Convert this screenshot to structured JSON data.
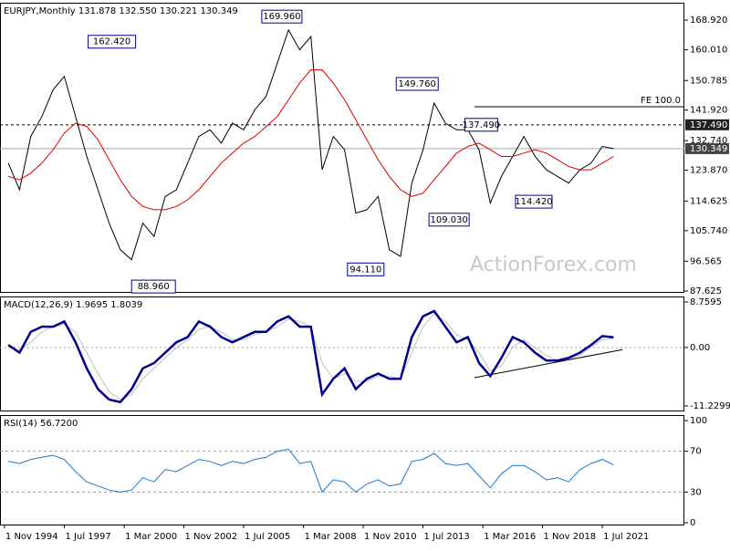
{
  "chart_data": [
    {
      "type": "line",
      "title": "EURJPY,Monthly  131.878 132.550 130.221 130.349",
      "watermark": "ActionForex.com",
      "x": [
        1995,
        1995.5,
        1996,
        1996.5,
        1997,
        1997.5,
        1998,
        1998.5,
        1999,
        1999.5,
        2000,
        2000.5,
        2001,
        2001.5,
        2002,
        2002.5,
        2003,
        2003.5,
        2004,
        2004.5,
        2005,
        2005.5,
        2006,
        2006.5,
        2007,
        2007.5,
        2008,
        2008.5,
        2009,
        2009.5,
        2010,
        2010.5,
        2011,
        2011.5,
        2012,
        2012.5,
        2013,
        2013.5,
        2014,
        2014.5,
        2015,
        2015.5,
        2016,
        2016.5,
        2017,
        2017.5,
        2018,
        2018.5,
        2019,
        2019.5,
        2020,
        2020.5,
        2021,
        2021.5,
        2022
      ],
      "series": [
        {
          "color": "#000000",
          "values": [
            126,
            118,
            134,
            140,
            148,
            152,
            140,
            128,
            118,
            108,
            100,
            97,
            108,
            104,
            116,
            118,
            126,
            134,
            136,
            132,
            138,
            136,
            142,
            146,
            156,
            166,
            160,
            164,
            124,
            134,
            130,
            111,
            112,
            116,
            100,
            98,
            120,
            130,
            144,
            138,
            136,
            136,
            130,
            114,
            122,
            128,
            134,
            128,
            124,
            122,
            120,
            124,
            126,
            131,
            130.349
          ]
        },
        {
          "color": "#e00000",
          "values": [
            122,
            121,
            123,
            126,
            130,
            135,
            138,
            137,
            133,
            127,
            121,
            116,
            113,
            112,
            112,
            113,
            115,
            118,
            122,
            126,
            129,
            132,
            134,
            137,
            140,
            145,
            150,
            154,
            154,
            150,
            145,
            139,
            133,
            127,
            122,
            118,
            116,
            117,
            121,
            125,
            129,
            131,
            132,
            130,
            128,
            128,
            129,
            130,
            129,
            127,
            125,
            124,
            124,
            126,
            128
          ]
        }
      ],
      "xlim": [
        1994.63,
        2025.16
      ],
      "ylim": [
        87.35,
        174.12
      ],
      "yticks": [
        {
          "value": 168.92,
          "label": "168.920"
        },
        {
          "value": 160.01,
          "label": "160.010"
        },
        {
          "value": 150.785,
          "label": "150.785"
        },
        {
          "value": 141.92,
          "label": "141.920"
        },
        {
          "value": 132.74,
          "label": "132.740"
        },
        {
          "value": 123.87,
          "label": "123.870"
        },
        {
          "value": 114.625,
          "label": "114.625"
        },
        {
          "value": 105.74,
          "label": "105.740"
        },
        {
          "value": 96.565,
          "label": "96.565"
        },
        {
          "value": 87.625,
          "label": "87.625"
        }
      ],
      "annotations": [
        {
          "label": "162.420",
          "value": 162.42,
          "x": 1998.4
        },
        {
          "label": "88.960",
          "value": 88.96,
          "x": 2000.5
        },
        {
          "label": "169.960",
          "value": 169.96,
          "x": 2008.1
        },
        {
          "label": "94.110",
          "value": 94.11,
          "x": 2011.8
        },
        {
          "label": "149.760",
          "value": 149.76,
          "x": 2014.3
        },
        {
          "label": "109.030",
          "value": 109.03,
          "x": 2015.6
        },
        {
          "label": "137.490",
          "value": 137.49,
          "x": 2017.4
        },
        {
          "label": "114.420",
          "value": 114.42,
          "x": 2019.5
        }
      ],
      "fe": {
        "label": "FE 100.0",
        "value": 142.92,
        "x": 2015.8
      },
      "levels": [
        {
          "label": "137.490",
          "value": 137.49,
          "style": "dashed",
          "color": "#222222"
        },
        {
          "label": "130.349",
          "value": 130.349,
          "style": "solid",
          "color": "#444444"
        }
      ]
    },
    {
      "type": "line",
      "title": "MACD(12,26,9) 1.9695 1.8039",
      "x": [
        1995,
        1995.5,
        1996,
        1996.5,
        1997,
        1997.5,
        1998,
        1998.5,
        1999,
        1999.5,
        2000,
        2000.5,
        2001,
        2001.5,
        2002,
        2002.5,
        2003,
        2003.5,
        2004,
        2004.5,
        2005,
        2005.5,
        2006,
        2006.5,
        2007,
        2007.5,
        2008,
        2008.5,
        2009,
        2009.5,
        2010,
        2010.5,
        2011,
        2011.5,
        2012,
        2012.5,
        2013,
        2013.5,
        2014,
        2014.5,
        2015,
        2015.5,
        2016,
        2016.5,
        2017,
        2017.5,
        2018,
        2018.5,
        2019,
        2019.5,
        2020,
        2020.5,
        2021,
        2021.5,
        2022
      ],
      "series": [
        {
          "color": "#c0c0c0",
          "values": [
            0,
            -0.5,
            1,
            3,
            4,
            4.5,
            3,
            -1,
            -5,
            -8.5,
            -10,
            -9,
            -6,
            -4,
            -2,
            0,
            1.5,
            3.5,
            4,
            3,
            1.5,
            1.5,
            2.5,
            3,
            4,
            5.5,
            5,
            4,
            -3,
            -6,
            -5,
            -6.5,
            -6.5,
            -5.5,
            -5.5,
            -6,
            -1,
            4,
            6.5,
            5,
            2.5,
            1.5,
            -1,
            -4.5,
            -3.5,
            0,
            1.5,
            0,
            -1.5,
            -2.5,
            -2.2,
            -1.5,
            0,
            1.5,
            1.8039
          ]
        },
        {
          "color": "#00008b",
          "values": [
            0.5,
            -1,
            3,
            4,
            4,
            5,
            1,
            -4,
            -8,
            -10,
            -10.5,
            -8,
            -4,
            -3,
            -1,
            1,
            2,
            5,
            4,
            2,
            1,
            2,
            3,
            3,
            5,
            6,
            4,
            4,
            -9,
            -6,
            -4,
            -8,
            -6,
            -5,
            -6,
            -6,
            2,
            6,
            7,
            4,
            1,
            2,
            -3,
            -5.5,
            -2,
            2,
            1,
            -1,
            -2.5,
            -2.5,
            -2,
            -1,
            0.5,
            2.2,
            1.9695
          ]
        }
      ],
      "trendline": {
        "x": [
          2015.8,
          2022.4
        ],
        "y": [
          -5.8,
          -0.4
        ]
      },
      "xlim": [
        1994.63,
        2025.16
      ],
      "ylim": [
        -12.11,
        9.81
      ],
      "yticks": [
        {
          "value": 8.7595,
          "label": "8.7595"
        },
        {
          "value": 0,
          "label": "0.00"
        },
        {
          "value": -11.2299,
          "label": "-11.2299"
        }
      ]
    },
    {
      "type": "line",
      "title": "RSI(14) 56.7200",
      "x": [
        1995,
        1995.5,
        1996,
        1996.5,
        1997,
        1997.5,
        1998,
        1998.5,
        1999,
        1999.5,
        2000,
        2000.5,
        2001,
        2001.5,
        2002,
        2002.5,
        2003,
        2003.5,
        2004,
        2004.5,
        2005,
        2005.5,
        2006,
        2006.5,
        2007,
        2007.5,
        2008,
        2008.5,
        2009,
        2009.5,
        2010,
        2010.5,
        2011,
        2011.5,
        2012,
        2012.5,
        2013,
        2013.5,
        2014,
        2014.5,
        2015,
        2015.5,
        2016,
        2016.5,
        2017,
        2017.5,
        2018,
        2018.5,
        2019,
        2019.5,
        2020,
        2020.5,
        2021,
        2021.5,
        2022
      ],
      "series": [
        {
          "color": "#1e78d0",
          "values": [
            60,
            58,
            62,
            64,
            66,
            62,
            50,
            40,
            36,
            32,
            30,
            32,
            44,
            40,
            52,
            50,
            56,
            62,
            60,
            56,
            60,
            58,
            62,
            64,
            70,
            72,
            58,
            60,
            30,
            42,
            40,
            30,
            38,
            42,
            36,
            38,
            60,
            62,
            68,
            58,
            56,
            58,
            46,
            34,
            48,
            56,
            56,
            50,
            42,
            44,
            40,
            52,
            58,
            62,
            56.72
          ]
        }
      ],
      "xlim": [
        1994.63,
        2025.16
      ],
      "ylim": [
        -1.8,
        105.4
      ],
      "yticks": [
        100,
        70,
        30,
        0
      ],
      "levels": [
        70,
        30
      ],
      "xticks": [
        {
          "value": 1994.83,
          "label": "1 Nov 1994"
        },
        {
          "value": 1997.5,
          "label": "1 Jul 1997"
        },
        {
          "value": 2000.17,
          "label": "1 Mar 2000"
        },
        {
          "value": 2002.83,
          "label": "1 Nov 2002"
        },
        {
          "value": 2005.5,
          "label": "1 Jul 2005"
        },
        {
          "value": 2008.17,
          "label": "1 Mar 2008"
        },
        {
          "value": 2010.83,
          "label": "1 Nov 2010"
        },
        {
          "value": 2013.5,
          "label": "1 Jul 2013"
        },
        {
          "value": 2016.17,
          "label": "1 Mar 2016"
        },
        {
          "value": 2018.83,
          "label": "1 Nov 2018"
        },
        {
          "value": 2021.5,
          "label": "1 Jul 2021"
        }
      ]
    }
  ]
}
